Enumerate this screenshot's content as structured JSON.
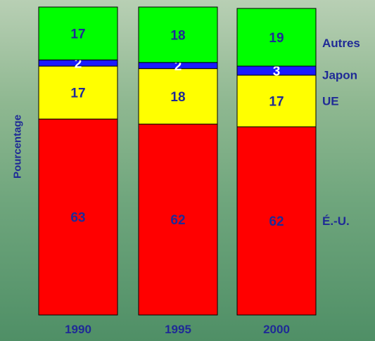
{
  "chart_data": {
    "type": "bar",
    "stacked": true,
    "percent": true,
    "ylabel": "Pourcentage",
    "categories": [
      "1990",
      "1995",
      "2000"
    ],
    "series": [
      {
        "name": "É.-U.",
        "values": [
          63,
          62,
          62
        ],
        "color": "#ff0000",
        "label_color": "#1f2a96"
      },
      {
        "name": "UE",
        "values": [
          17,
          18,
          17
        ],
        "color": "#ffff00",
        "label_color": "#1f2a96"
      },
      {
        "name": "Japon",
        "values": [
          2,
          2,
          3
        ],
        "color": "#1a1aff",
        "label_color": "#ffffff"
      },
      {
        "name": "Autres",
        "values": [
          17,
          18,
          19
        ],
        "color": "#00ff00",
        "label_color": "#1f2a96"
      }
    ],
    "legend_position": "right",
    "colors": {
      "text": "#1f2a96",
      "bar_border": "#000000"
    }
  }
}
